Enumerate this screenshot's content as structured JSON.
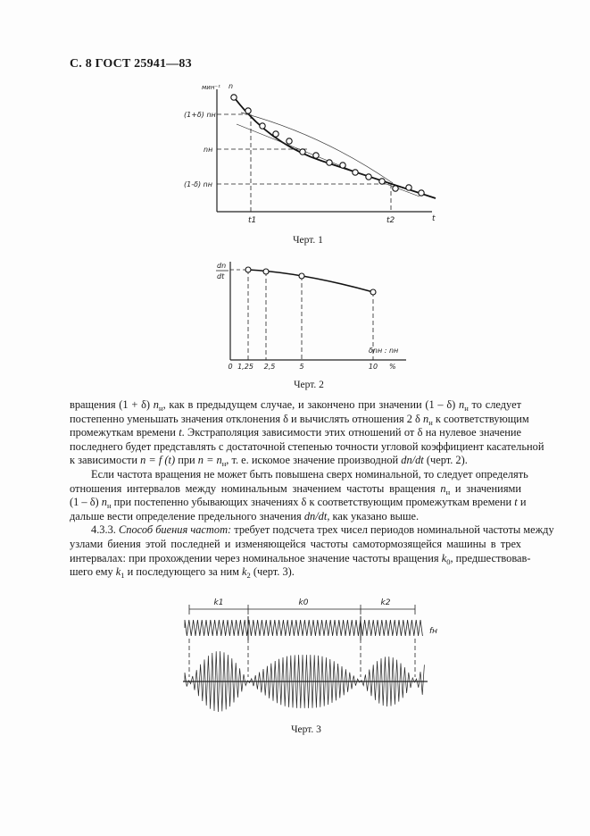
{
  "header": "С. 8 ГОСТ 25941—83",
  "figure1": {
    "caption": "Черт. 1",
    "unit_label": "мин⁻¹",
    "y_label": "n",
    "x_label": "t",
    "level_upper": "(1+δ) nн",
    "level_nominal": "nн",
    "level_lower": "(1-δ) nн",
    "t1_label": "t1",
    "t2_label": "t2"
  },
  "figure2": {
    "caption": "Черт. 2",
    "y_label_num": "dn",
    "y_label_den": "dt",
    "x_label": "δnн : nн",
    "x_unit": "%",
    "ticks": [
      "0",
      "1,25",
      "2,5",
      "5",
      "10"
    ],
    "points_x": [
      1.25,
      2.5,
      5,
      10
    ]
  },
  "figure3": {
    "caption": "Черт. 3",
    "interval_labels": [
      "k1",
      "k0",
      "k2"
    ],
    "signal_label": "fн"
  },
  "text": {
    "lines": [
      {
        "segs": [
          "вращения (1 + δ) ",
          {
            "i": "n"
          },
          {
            "s": "н"
          },
          ", как в предыдущем случае, и закончено при значении (1 – δ) ",
          {
            "i": "n"
          },
          {
            "s": "н"
          },
          " то следует"
        ]
      },
      {
        "segs": [
          "постепенно уменьшать значения отклонения δ и вычислять отношения 2 δ ",
          {
            "i": "n"
          },
          {
            "s": "н"
          },
          " к соответствующим"
        ]
      },
      {
        "segs": [
          "промежуткам времени ",
          {
            "i": "t"
          },
          ". Экстраполяция зависимости этих отношений от δ на нулевое значение"
        ]
      },
      {
        "segs": [
          "последнего будет представлять с достаточной степенью точности угловой коэффициент касательной"
        ]
      },
      {
        "last": true,
        "segs": [
          "к зависимости ",
          {
            "i": "n = f (t)"
          },
          " при ",
          {
            "i": "n = n"
          },
          {
            "s": "н"
          },
          ", т. е. искомое значение производной ",
          {
            "i": "dn/dt"
          },
          " (черт. 2)."
        ]
      },
      {
        "indent": true,
        "segs": [
          "Если частота вращения не может быть повышена сверх номинальной, то следует определять"
        ]
      },
      {
        "segs": [
          "отношения интервалов между номинальным значением частоты вращения ",
          {
            "i": "n"
          },
          {
            "s": "н"
          },
          " и значениями"
        ]
      },
      {
        "segs": [
          "(1 – δ) ",
          {
            "i": "n"
          },
          {
            "s": "н"
          },
          " при постепенно убывающих значениях δ к соответствующим промежуткам времени ",
          {
            "i": "t"
          },
          " и"
        ]
      },
      {
        "last": true,
        "segs": [
          "дальше вести определение предельного значения ",
          {
            "i": "dn/dt"
          },
          ", как указано выше."
        ]
      },
      {
        "indent": true,
        "segs": [
          "4.3.3. ",
          {
            "i": "Способ биения частот:"
          },
          " требует подсчета трех чисел периодов номинальной частоты между"
        ]
      },
      {
        "segs": [
          "узлами биения этой последней и изменяющейся частоты самотормозящейся машины в трех"
        ]
      },
      {
        "segs": [
          "интервалах: при прохождении через номинальное значение частоты вращения ",
          {
            "i": "k"
          },
          {
            "s": "0"
          },
          ", предшествовав-"
        ]
      },
      {
        "last": true,
        "segs": [
          "шего ему ",
          {
            "i": "k"
          },
          {
            "s": "1"
          },
          " и последующего за ним ",
          {
            "i": "k"
          },
          {
            "s": "2"
          },
          " (черт. 3)."
        ]
      }
    ]
  }
}
